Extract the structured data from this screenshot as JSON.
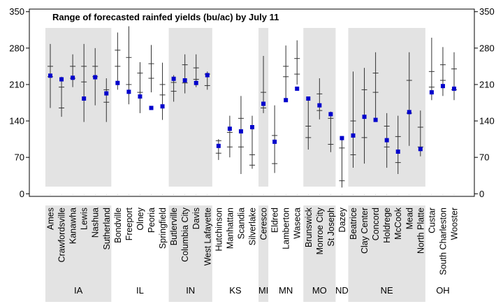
{
  "chart_data": {
    "type": "errorbar",
    "title": "Range of forecasted rainfed yields (bu/ac) by July 11",
    "ylabel": "",
    "ylim": [
      -5,
      355
    ],
    "yticks": [
      0,
      70,
      140,
      210,
      280,
      350
    ],
    "marker_color": "#0000cc",
    "band_color": "#e3e3e3",
    "sites": [
      {
        "name": "Ames",
        "state": "IA",
        "min": 165,
        "q1": 225,
        "q3": 245,
        "max": 288,
        "obs": 227
      },
      {
        "name": "Crawfordsville",
        "state": "IA",
        "min": 148,
        "q1": 165,
        "q3": 205,
        "max": 225,
        "obs": 220
      },
      {
        "name": "Kanawha",
        "state": "IA",
        "min": 205,
        "q1": 222,
        "q3": 245,
        "max": 268,
        "obs": 223
      },
      {
        "name": "Lewis",
        "state": "IA",
        "min": 138,
        "q1": 215,
        "q3": 245,
        "max": 288,
        "obs": 183
      },
      {
        "name": "Nashua",
        "state": "IA",
        "min": 170,
        "q1": 225,
        "q3": 245,
        "max": 280,
        "obs": 224
      },
      {
        "name": "Sutherland",
        "state": "IA",
        "min": 138,
        "q1": 176,
        "q3": 200,
        "max": 222,
        "obs": 193
      },
      {
        "name": "Bondville",
        "state": "IL",
        "min": 200,
        "q1": 245,
        "q3": 276,
        "max": 310,
        "obs": 213
      },
      {
        "name": "Freeport",
        "state": "IL",
        "min": 172,
        "q1": 210,
        "q3": 262,
        "max": 322,
        "obs": 196
      },
      {
        "name": "Olney",
        "state": "IL",
        "min": 155,
        "q1": 195,
        "q3": 232,
        "max": 253,
        "obs": 187
      },
      {
        "name": "Peoria",
        "state": "IL",
        "min": 195,
        "q1": 222,
        "q3": 250,
        "max": 286,
        "obs": 165
      },
      {
        "name": "Springfield",
        "state": "IL",
        "min": 142,
        "q1": 190,
        "q3": 210,
        "max": 252,
        "obs": 168
      },
      {
        "name": "Butlerville",
        "state": "IN",
        "min": 177,
        "q1": 197,
        "q3": 214,
        "max": 228,
        "obs": 221
      },
      {
        "name": "Columbia City",
        "state": "IN",
        "min": 193,
        "q1": 213,
        "q3": 248,
        "max": 268,
        "obs": 218
      },
      {
        "name": "Davis",
        "state": "IN",
        "min": 205,
        "q1": 220,
        "q3": 242,
        "max": 268,
        "obs": 213
      },
      {
        "name": "West Lafayette",
        "state": "IN",
        "min": 200,
        "q1": 208,
        "q3": 230,
        "max": 235,
        "obs": 228
      },
      {
        "name": "Hutchinson",
        "state": "KS",
        "min": 65,
        "q1": 78,
        "q3": 102,
        "max": 105,
        "obs": 92
      },
      {
        "name": "Manhattan",
        "state": "KS",
        "min": 70,
        "q1": 90,
        "q3": 118,
        "max": 150,
        "obs": 125
      },
      {
        "name": "Scandia",
        "state": "KS",
        "min": 38,
        "q1": 90,
        "q3": 145,
        "max": 188,
        "obs": 120
      },
      {
        "name": "Silverlake",
        "state": "KS",
        "min": 48,
        "q1": 55,
        "q3": 75,
        "max": 150,
        "obs": 128
      },
      {
        "name": "Ceresco",
        "state": "MI",
        "min": 155,
        "q1": 165,
        "q3": 195,
        "max": 265,
        "obs": 173
      },
      {
        "name": "Eldred",
        "state": "MN",
        "min": 40,
        "q1": 58,
        "q3": 112,
        "max": 170,
        "obs": 100
      },
      {
        "name": "Lamberton",
        "state": "MN",
        "min": 183,
        "q1": 225,
        "q3": 245,
        "max": 285,
        "obs": 180
      },
      {
        "name": "Waseca",
        "state": "MN",
        "min": 210,
        "q1": 230,
        "q3": 260,
        "max": 295,
        "obs": 202
      },
      {
        "name": "Brunswick",
        "state": "MO",
        "min": 85,
        "q1": 108,
        "q3": 130,
        "max": 185,
        "obs": 183
      },
      {
        "name": "Monroe City",
        "state": "MO",
        "min": 143,
        "q1": 160,
        "q3": 192,
        "max": 222,
        "obs": 170
      },
      {
        "name": "St Joseph",
        "state": "MO",
        "min": 80,
        "q1": 95,
        "q3": 145,
        "max": 158,
        "obs": 153
      },
      {
        "name": "Dazey",
        "state": "ND",
        "min": 12,
        "q1": 25,
        "q3": 88,
        "max": 110,
        "obs": 107
      },
      {
        "name": "Beatrice",
        "state": "NE",
        "min": 50,
        "q1": 75,
        "q3": 140,
        "max": 235,
        "obs": 112
      },
      {
        "name": "Clay Center",
        "state": "NE",
        "min": 58,
        "q1": 108,
        "q3": 200,
        "max": 242,
        "obs": 148
      },
      {
        "name": "Concord",
        "state": "NE",
        "min": 138,
        "q1": 195,
        "q3": 232,
        "max": 272,
        "obs": 142
      },
      {
        "name": "Holdrege",
        "state": "NE",
        "min": 50,
        "q1": 90,
        "q3": 130,
        "max": 155,
        "obs": 103
      },
      {
        "name": "McCook",
        "state": "NE",
        "min": 38,
        "q1": 60,
        "q3": 110,
        "max": 150,
        "obs": 81
      },
      {
        "name": "Mead",
        "state": "NE",
        "min": 92,
        "q1": 155,
        "q3": 218,
        "max": 272,
        "obs": 157
      },
      {
        "name": "North Platte",
        "state": "NE",
        "min": 72,
        "q1": 90,
        "q3": 128,
        "max": 160,
        "obs": 86
      },
      {
        "name": "Custar",
        "state": "OH",
        "min": 180,
        "q1": 205,
        "q3": 235,
        "max": 300,
        "obs": 195
      },
      {
        "name": "South Charleston",
        "state": "OH",
        "min": 188,
        "q1": 218,
        "q3": 248,
        "max": 282,
        "obs": 207
      },
      {
        "name": "Wooster",
        "state": "OH",
        "min": 180,
        "q1": 200,
        "q3": 240,
        "max": 272,
        "obs": 202
      }
    ],
    "states": [
      {
        "name": "IA",
        "shaded": true
      },
      {
        "name": "IL",
        "shaded": false
      },
      {
        "name": "IN",
        "shaded": true
      },
      {
        "name": "KS",
        "shaded": false
      },
      {
        "name": "MI",
        "shaded": true
      },
      {
        "name": "MN",
        "shaded": false
      },
      {
        "name": "MO",
        "shaded": true
      },
      {
        "name": "ND",
        "shaded": false
      },
      {
        "name": "NE",
        "shaded": true
      },
      {
        "name": "OH",
        "shaded": false
      }
    ]
  }
}
